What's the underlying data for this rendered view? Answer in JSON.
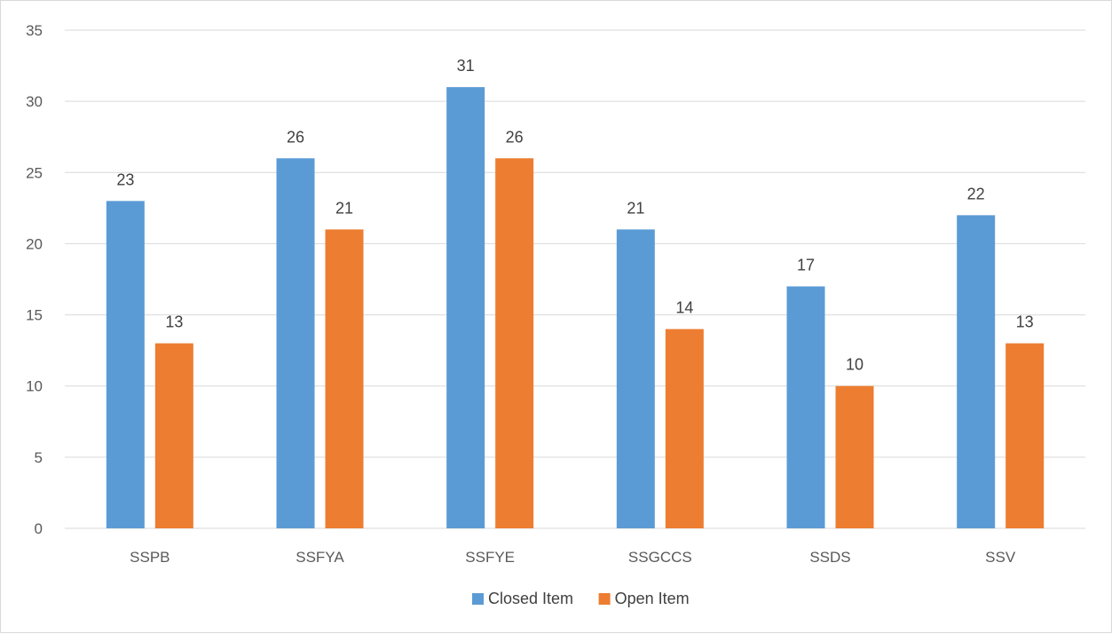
{
  "chart_data": {
    "type": "bar",
    "title": "",
    "xlabel": "",
    "ylabel": "",
    "categories": [
      "SSPB",
      "SSFYA",
      "SSFYE",
      "SSGCCS",
      "SSDS",
      "SSV"
    ],
    "series": [
      {
        "name": "Closed Item",
        "color": "#5b9bd5",
        "values": [
          23,
          26,
          31,
          21,
          17,
          22
        ]
      },
      {
        "name": "Open Item",
        "color": "#ed7d31",
        "values": [
          13,
          21,
          26,
          14,
          10,
          13
        ]
      }
    ],
    "ylim": [
      0,
      35
    ],
    "yticks": [
      0,
      5,
      10,
      15,
      20,
      25,
      30,
      35
    ],
    "grid": true,
    "data_labels": true,
    "legend_position": "bottom"
  }
}
